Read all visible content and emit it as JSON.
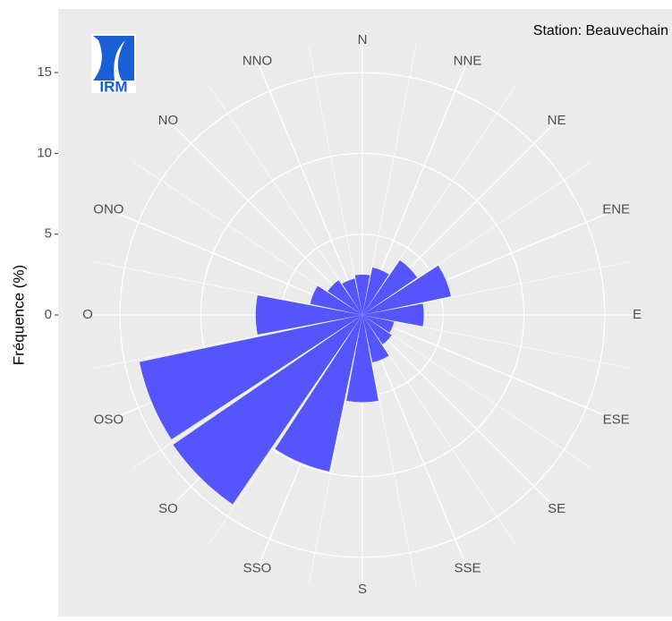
{
  "chart_data": {
    "type": "windrose",
    "annotation": "Station: Beauvechain",
    "logo_text": "IRM",
    "y_label": "Fréquence (%)",
    "categories": [
      "N",
      "NNE",
      "NE",
      "ENE",
      "E",
      "ESE",
      "SE",
      "SSE",
      "S",
      "SSO",
      "SO",
      "OSO",
      "O",
      "ONO",
      "NO",
      "NNO"
    ],
    "values": [
      2.5,
      3.0,
      4.1,
      5.6,
      3.8,
      2.0,
      2.2,
      3.0,
      5.4,
      9.9,
      14.2,
      14.1,
      6.6,
      3.3,
      2.6,
      2.3
    ],
    "color": "#4d4dff",
    "ylim": [
      0,
      17
    ],
    "yticks": [
      0,
      5,
      10,
      15
    ],
    "grid": true
  }
}
